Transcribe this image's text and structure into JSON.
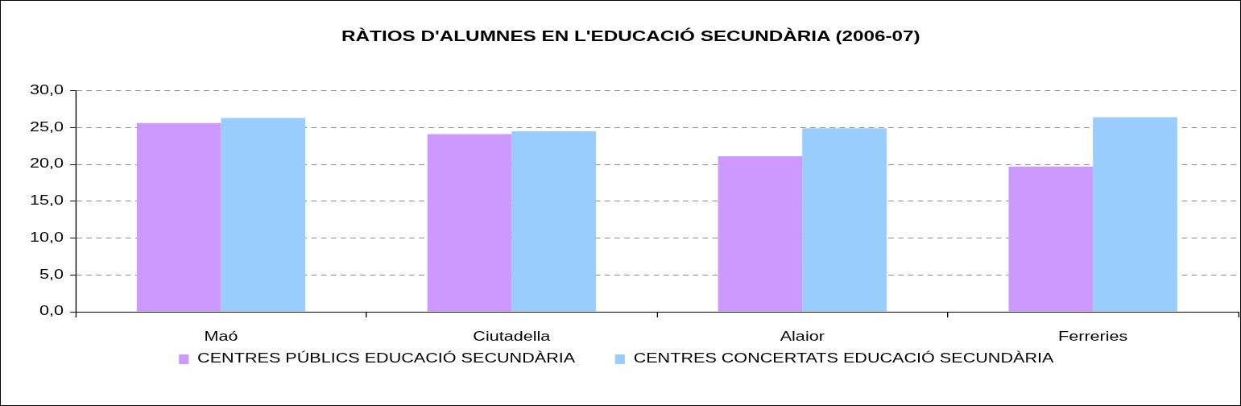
{
  "chart_data": {
    "type": "bar",
    "title": "RÀTIOS D'ALUMNES EN L'EDUCACIÓ SECUNDÀRIA (2006-07)",
    "categories": [
      "Maó",
      "Ciutadella",
      "Alaior",
      "Ferreries"
    ],
    "series": [
      {
        "name": "CENTRES PÚBLICS EDUCACIÓ SECUNDÀRIA",
        "color": "#cc99ff",
        "values": [
          25.6,
          24.1,
          21.1,
          19.7
        ]
      },
      {
        "name": "CENTRES CONCERTATS EDUCACIÓ SECUNDÀRIA",
        "color": "#99ccff",
        "values": [
          26.3,
          24.5,
          24.9,
          26.4
        ]
      }
    ],
    "ylim": [
      0,
      30
    ],
    "yticks": [
      {
        "value": 0,
        "label": "0,0"
      },
      {
        "value": 5,
        "label": "5,0"
      },
      {
        "value": 10,
        "label": "10,0"
      },
      {
        "value": 15,
        "label": "15,0"
      },
      {
        "value": 20,
        "label": "20,0"
      },
      {
        "value": 25,
        "label": "25,0"
      },
      {
        "value": 30,
        "label": "30,0"
      }
    ],
    "grid": "y",
    "legend": "bottom"
  }
}
